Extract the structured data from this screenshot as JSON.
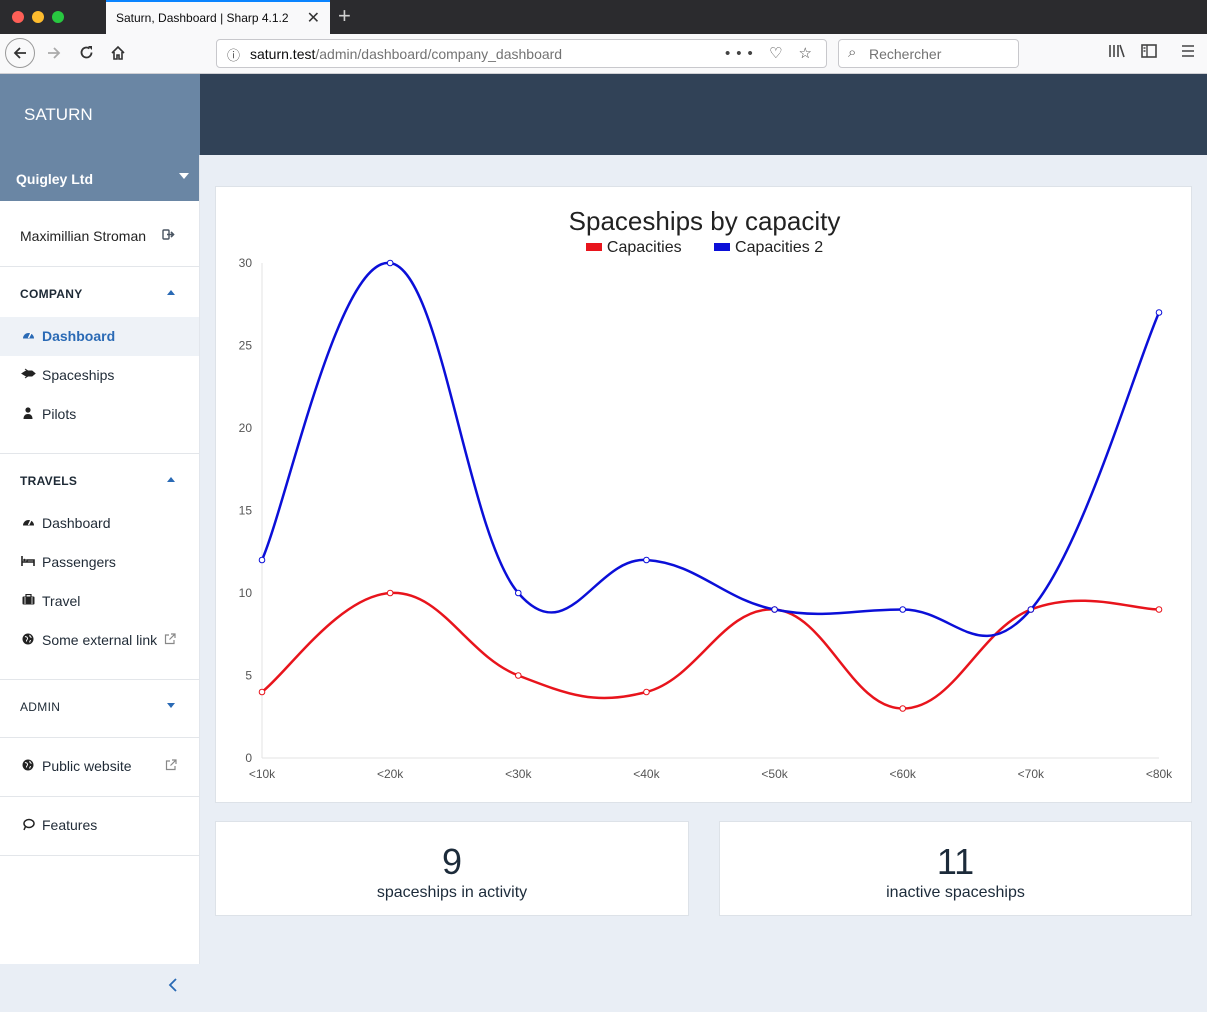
{
  "browser": {
    "tab_title": "Saturn, Dashboard | Sharp 4.1.2",
    "tab_close": "✕",
    "new_tab": "+",
    "url_host": "saturn.test",
    "url_path": "/admin/dashboard/company_dashboard",
    "search_placeholder": "Rechercher",
    "url_actions": "••• ♡ ☆"
  },
  "app": {
    "brand": "SATURN",
    "company": "Quigley Ltd",
    "user": "Maximillian Stroman"
  },
  "sidebar": {
    "company_section": {
      "title": "COMPANY",
      "items": [
        {
          "label": "Dashboard",
          "icon": "dashboard-icon",
          "active": true
        },
        {
          "label": "Spaceships",
          "icon": "spaceship-icon"
        },
        {
          "label": "Pilots",
          "icon": "user-icon"
        }
      ]
    },
    "travels_section": {
      "title": "TRAVELS",
      "items": [
        {
          "label": "Dashboard",
          "icon": "dashboard-icon"
        },
        {
          "label": "Passengers",
          "icon": "bed-icon"
        },
        {
          "label": "Travel",
          "icon": "suitcase-icon"
        },
        {
          "label": "Some external link",
          "icon": "globe-icon"
        }
      ]
    },
    "admin_section": {
      "title": "ADMIN"
    },
    "public_website": "Public website",
    "features": "Features"
  },
  "chart_data": {
    "type": "line",
    "title": "Spaceships by capacity",
    "categories": [
      "<10k",
      "<20k",
      "<30k",
      "<40k",
      "<50k",
      "<60k",
      "<70k",
      "<80k"
    ],
    "series": [
      {
        "name": "Capacities",
        "color": "#e8141c",
        "values": [
          4,
          10,
          5,
          4,
          9,
          3,
          9,
          9
        ]
      },
      {
        "name": "Capacities 2",
        "color": "#0b0fd8",
        "values": [
          12,
          30,
          10,
          12,
          9,
          9,
          9,
          27
        ]
      }
    ],
    "yticks": [
      "0",
      "5",
      "10",
      "15",
      "20",
      "25",
      "30"
    ],
    "ylim": [
      0,
      30
    ],
    "legend": "top",
    "smooth": true
  },
  "stats": [
    {
      "value": "9",
      "label": "spaceships in activity"
    },
    {
      "value": "11",
      "label": "inactive spaceships"
    }
  ]
}
